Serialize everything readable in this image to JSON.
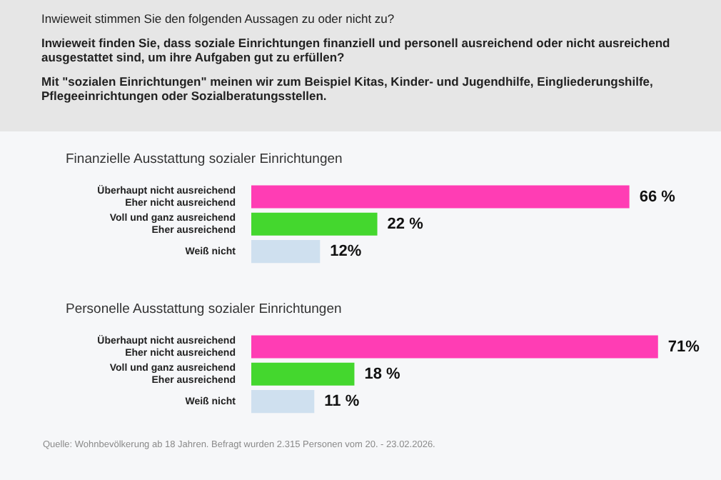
{
  "chart_data": [
    {
      "type": "other",
      "title": "Inwieweit stimmen Sie den folgenden Aussagen zu oder nicht zu?",
      "subtitle": "Inwieweit finden Sie, dass soziale Einrichtungen finanziell und personell ausreichend oder nicht ausreichend ausgestattet sind, um ihre Aufgaben gut zu erfüllen?",
      "annotations": [
        "Mit \"sozialen Einrichtungen\" meinen wir zum Beispiel Kitas, Kinder- und Jugendhilfe, Eingliederungshilfe, Pflegeeinrichtungen oder Sozialberatungsstellen."
      ]
    },
    {
      "type": "bar",
      "orientation": "horizontal",
      "title": "Finanzielle Ausstattung sozialer Einrichtungen",
      "categories": [
        "Überhaupt nicht ausreichend\nEher nicht ausreichend",
        "Voll und ganz ausreichend\nEher ausreichend",
        "Weiß nicht"
      ],
      "values": [
        66,
        22,
        12
      ],
      "colors": [
        "#ff3db4",
        "#44d72e",
        "#cfe0ef"
      ],
      "value_labels": [
        "66 %",
        "22 %",
        "12%"
      ],
      "tick_labels": "y"
    },
    {
      "type": "bar",
      "orientation": "horizontal",
      "title": "Personelle Ausstattung sozialer Einrichtungen",
      "categories": [
        "Überhaupt nicht ausreichend\nEher nicht ausreichend",
        "Voll und ganz ausreichend\nEher ausreichend",
        "Weiß nicht"
      ],
      "values": [
        71,
        18,
        11
      ],
      "colors": [
        "#ff3db4",
        "#44d72e",
        "#cfe0ef"
      ],
      "value_labels": [
        "71%",
        "18 %",
        "11 %"
      ],
      "tick_labels": "y",
      "annotations": [
        "Quelle: Wohnbevölkerung ab 18 Jahren. Befragt wurden 2.315 Personen vom 20. - 23.02.2026."
      ]
    }
  ]
}
